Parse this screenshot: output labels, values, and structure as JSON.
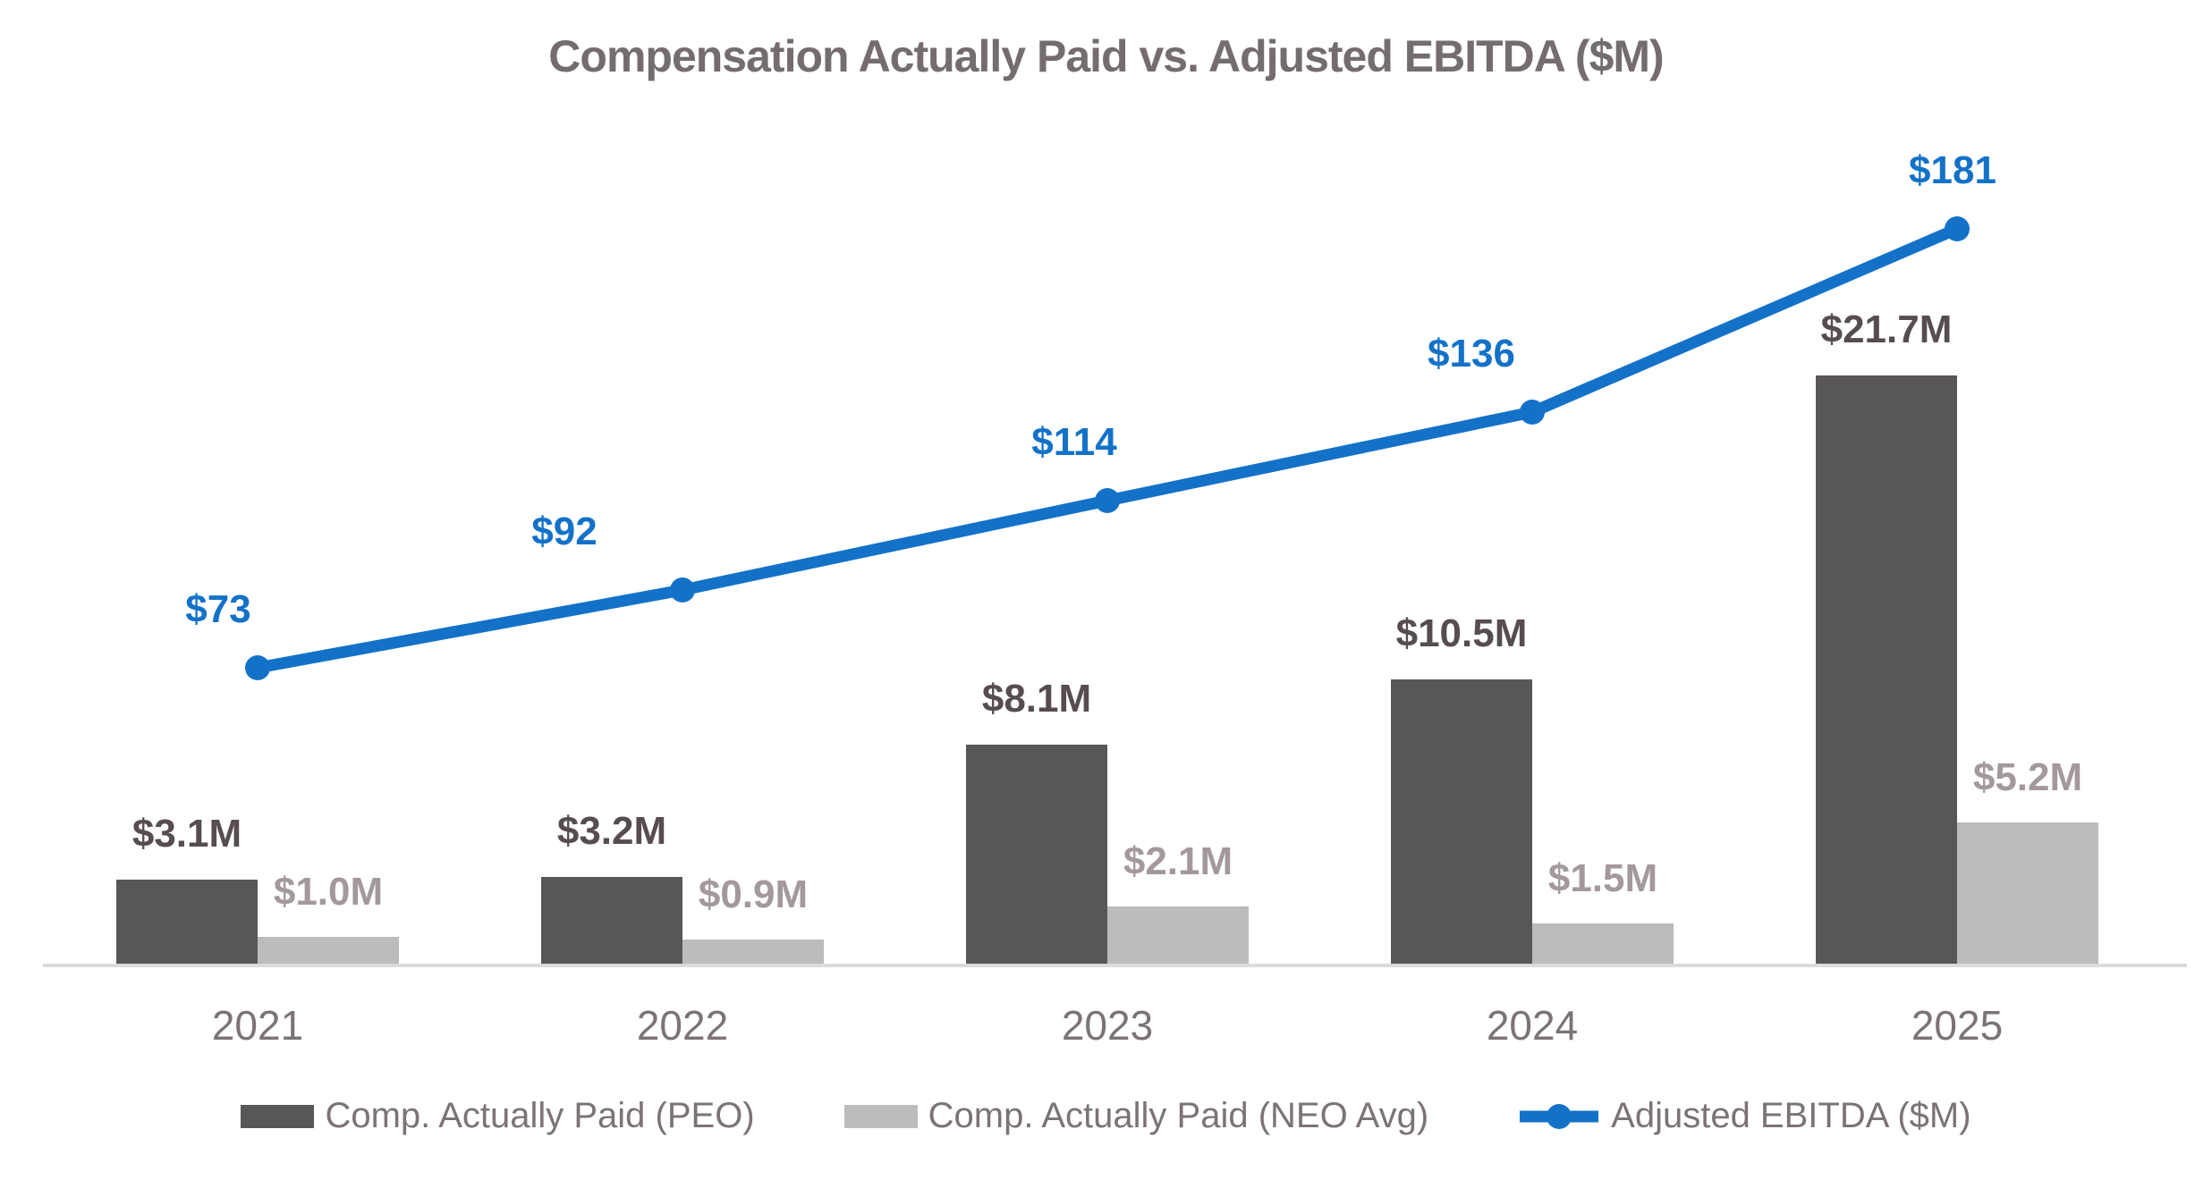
{
  "chart_data": {
    "type": "bar",
    "subtype": "combo-bar-line",
    "title": "Compensation Actually Paid vs. Adjusted EBITDA ($M)",
    "categories": [
      "2021",
      "2022",
      "2023",
      "2024",
      "2025"
    ],
    "series": [
      {
        "name": "Comp. Actually Paid (PEO)",
        "type": "bar",
        "values": [
          3.1,
          3.2,
          8.1,
          10.5,
          21.7
        ],
        "labels": [
          "$3.1M",
          "$3.2M",
          "$8.1M",
          "$10.5M",
          "$21.7M"
        ],
        "color": "#595657",
        "label_color": "#564c51"
      },
      {
        "name": "Comp. Actually Paid (NEO Avg)",
        "type": "bar",
        "values": [
          1.0,
          0.9,
          2.1,
          1.5,
          5.2
        ],
        "labels": [
          "$1.0M",
          "$0.9M",
          "$2.1M",
          "$1.5M",
          "$5.2M"
        ],
        "color": "#bdbbbb",
        "label_color": "#a3989d"
      },
      {
        "name": "Adjusted EBITDA ($M)",
        "type": "line",
        "values": [
          73,
          92,
          114,
          136,
          181
        ],
        "labels": [
          "$73",
          "$92",
          "$114",
          "$136",
          "$181"
        ],
        "color": "#1372c8",
        "label_color": "#1372c8"
      }
    ],
    "xlabel": "",
    "ylabel": "",
    "axes_visible": false,
    "gridlines": false,
    "legend_position": "bottom",
    "layout_hints": {
      "line_label_dx": [
        -44,
        -132,
        -37,
        -68,
        -5
      ],
      "line_label_gap": 40,
      "bar_label_gap": 26
    },
    "colors": {
      "title": "#746c70",
      "x_tick": "#7b7377",
      "legend_text": "#7b7377",
      "axis_line": "#dcdadb",
      "background": "#ffffff"
    }
  }
}
